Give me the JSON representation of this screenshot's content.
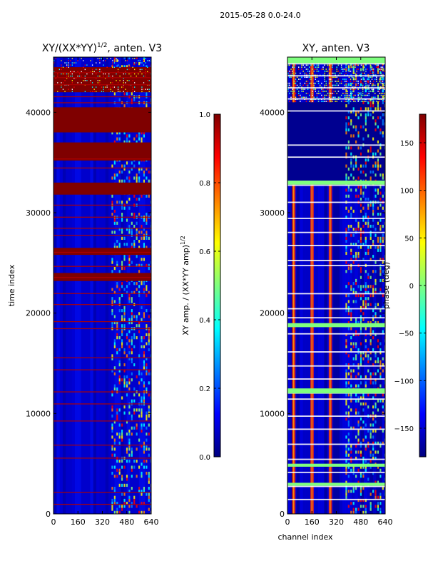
{
  "figure": {
    "suptitle": "2015-05-28 0.0-24.0"
  },
  "colors": {
    "jet": [
      "#00007f",
      "#0000ff",
      "#007fff",
      "#00ffff",
      "#7fff7f",
      "#ffff00",
      "#ff7f00",
      "#ff0000",
      "#7f0000"
    ]
  },
  "chart_data": [
    {
      "type": "heatmap",
      "title": "XY/(XX*YY)",
      "title_sup": "1/2",
      "title_suffix": ", anten. V3",
      "xlabel": "",
      "ylabel": "time index",
      "xlim": [
        0,
        640
      ],
      "ylim": [
        0,
        45500
      ],
      "xticks": [
        0,
        160,
        320,
        480,
        640
      ],
      "yticks": [
        0,
        10000,
        20000,
        30000,
        40000
      ],
      "colorbar": {
        "label": "XY amp. / (XX*YY amp)",
        "label_sup": "1/2",
        "range": [
          0.0,
          1.0
        ],
        "ticks": [
          "0.0",
          "0.2",
          "0.4",
          "0.6",
          "0.8",
          "1.0"
        ]
      },
      "saturated_time_bands": [
        [
          33000,
          31800
        ],
        [
          37000,
          35200
        ],
        [
          40500,
          38000
        ],
        [
          26500,
          25800
        ],
        [
          24000,
          23200
        ],
        [
          44500,
          42000
        ]
      ],
      "flag_lines": [
        1000,
        2200,
        5600,
        6900,
        9300,
        11000,
        12200,
        14400,
        15600,
        18500,
        19200,
        20900,
        22000,
        23600,
        24700,
        26100,
        27800,
        28500,
        29600,
        30800,
        34500,
        35400,
        41000,
        41600,
        42800,
        43500,
        44000
      ],
      "active_channel_range": [
        380,
        640
      ]
    },
    {
      "type": "heatmap",
      "title": "XY, anten. V3",
      "xlabel": "channel index",
      "ylabel": "",
      "xlim": [
        0,
        640
      ],
      "ylim": [
        0,
        45500
      ],
      "xticks": [
        0,
        160,
        320,
        480,
        640
      ],
      "yticks": [
        0,
        10000,
        20000,
        30000,
        40000
      ],
      "colorbar": {
        "label": "phase (deg)",
        "range": [
          -180,
          180
        ],
        "ticks": [
          "150",
          "100",
          "50",
          "0",
          "−50",
          "−100",
          "−150"
        ]
      },
      "flag_lines": [
        1500,
        2800,
        4200,
        5500,
        7000,
        8500,
        9800,
        11500,
        12100,
        13500,
        14800,
        16200,
        18000,
        19600,
        20500,
        22000,
        24800,
        25300,
        26800,
        28100,
        29500,
        31100,
        32800,
        35600,
        36800,
        40200,
        41400,
        42500,
        43700,
        44900
      ],
      "phase_stripe_channels": [
        40,
        160,
        280
      ],
      "active_channel_range": [
        380,
        640
      ]
    }
  ]
}
